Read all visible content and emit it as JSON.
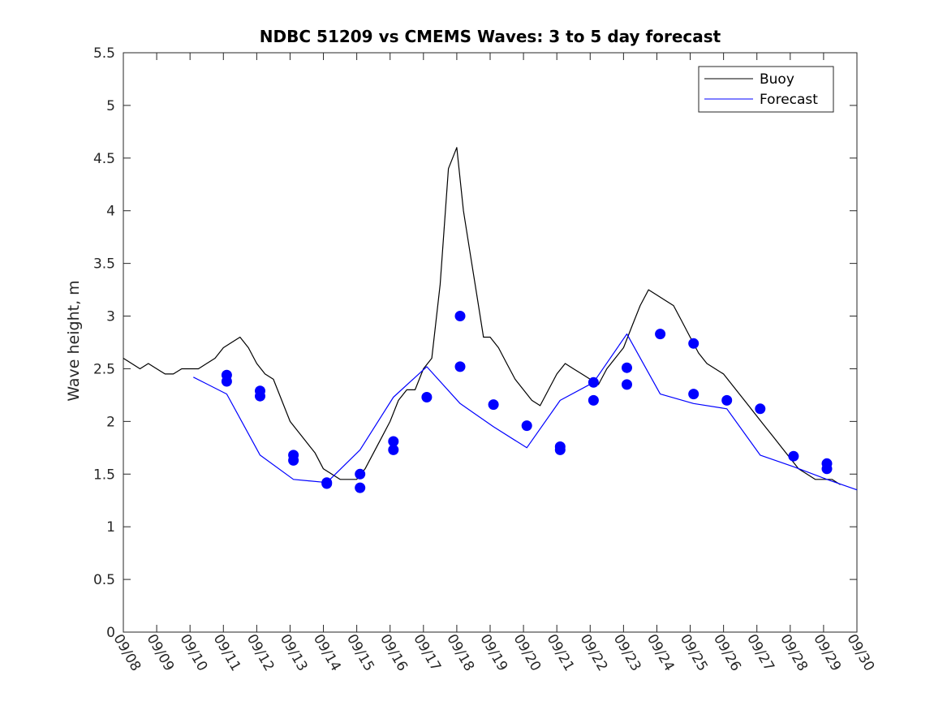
{
  "chart_data": {
    "type": "line",
    "title": "NDBC 51209 vs CMEMS Waves: 3 to 5 day forecast",
    "xlabel": "",
    "ylabel": "Wave height, m",
    "xlim": [
      0,
      22
    ],
    "ylim": [
      0,
      5.5
    ],
    "grid": false,
    "legend_position": "top-right",
    "x_tick_labels": [
      "09/08",
      "09/09",
      "09/10",
      "09/11",
      "09/12",
      "09/13",
      "09/14",
      "09/15",
      "09/16",
      "09/17",
      "09/18",
      "09/19",
      "09/20",
      "09/21",
      "09/22",
      "09/23",
      "09/24",
      "09/25",
      "09/26",
      "09/27",
      "09/28",
      "09/29",
      "09/30"
    ],
    "y_tick_labels": [
      "0",
      "0.5",
      "1",
      "1.5",
      "2",
      "2.5",
      "3",
      "3.5",
      "4",
      "4.5",
      "5",
      "5.5"
    ],
    "legend": [
      {
        "name": "Buoy",
        "color": "#000000"
      },
      {
        "name": "Forecast",
        "color": "#0000ff"
      }
    ],
    "series": [
      {
        "name": "Buoy",
        "color": "#000000",
        "x": [
          0.0,
          0.25,
          0.5,
          0.75,
          1.0,
          1.25,
          1.5,
          1.75,
          2.0,
          2.25,
          2.5,
          2.75,
          3.0,
          3.25,
          3.5,
          3.75,
          4.0,
          4.25,
          4.5,
          4.75,
          5.0,
          5.25,
          5.5,
          5.75,
          6.0,
          6.25,
          6.5,
          6.75,
          7.0,
          7.25,
          7.5,
          7.75,
          8.0,
          8.25,
          8.5,
          8.75,
          9.0,
          9.25,
          9.5,
          9.75,
          10.0,
          10.2,
          10.4,
          10.6,
          10.8,
          11.0,
          11.25,
          11.5,
          11.75,
          12.0,
          12.25,
          12.5,
          12.75,
          13.0,
          13.25,
          13.5,
          13.75,
          14.0,
          14.25,
          14.5,
          14.75,
          15.0,
          15.25,
          15.5,
          15.75,
          16.0,
          16.25,
          16.5,
          16.75,
          17.0,
          17.25,
          17.5,
          17.75,
          18.0,
          18.25,
          18.5,
          18.75,
          19.0,
          19.25,
          19.5,
          19.75,
          20.0,
          20.25,
          20.5,
          20.75,
          21.0,
          21.25,
          21.5
        ],
        "values": [
          2.6,
          2.55,
          2.5,
          2.55,
          2.5,
          2.45,
          2.45,
          2.5,
          2.5,
          2.5,
          2.55,
          2.6,
          2.7,
          2.75,
          2.8,
          2.7,
          2.55,
          2.45,
          2.4,
          2.2,
          2.0,
          1.9,
          1.8,
          1.7,
          1.55,
          1.5,
          1.45,
          1.45,
          1.45,
          1.55,
          1.7,
          1.85,
          2.0,
          2.2,
          2.3,
          2.3,
          2.5,
          2.6,
          3.3,
          4.4,
          4.6,
          4.0,
          3.6,
          3.2,
          2.8,
          2.8,
          2.7,
          2.55,
          2.4,
          2.3,
          2.2,
          2.15,
          2.3,
          2.45,
          2.55,
          2.5,
          2.45,
          2.4,
          2.35,
          2.5,
          2.6,
          2.7,
          2.9,
          3.1,
          3.25,
          3.2,
          3.15,
          3.1,
          2.95,
          2.8,
          2.65,
          2.55,
          2.5,
          2.45,
          2.35,
          2.25,
          2.15,
          2.05,
          1.95,
          1.85,
          1.75,
          1.65,
          1.55,
          1.5,
          1.45,
          1.45,
          1.45,
          1.4
        ]
      },
      {
        "name": "Forecast",
        "color": "#0000ff",
        "x": [
          2.1,
          3.1,
          4.1,
          5.1,
          6.1,
          7.1,
          8.1,
          9.1,
          10.1,
          11.1,
          12.1,
          13.1,
          14.1,
          15.1,
          16.1,
          17.1,
          18.1,
          19.1,
          20.1,
          21.1,
          22.0
        ],
        "values": [
          2.42,
          2.26,
          1.68,
          1.45,
          1.42,
          1.73,
          2.23,
          2.52,
          2.17,
          1.95,
          1.75,
          2.2,
          2.37,
          2.83,
          2.26,
          2.17,
          2.12,
          1.68,
          1.57,
          1.45,
          1.35
        ]
      }
    ],
    "forecast_markers": {
      "x": [
        3.1,
        3.1,
        4.1,
        4.1,
        5.1,
        5.1,
        6.1,
        6.1,
        7.1,
        7.1,
        8.1,
        8.1,
        9.1,
        10.1,
        10.1,
        11.1,
        12.1,
        13.1,
        13.1,
        14.1,
        14.1,
        15.1,
        15.1,
        16.1,
        17.1,
        17.1,
        18.1,
        19.1,
        20.1,
        21.1,
        21.1
      ],
      "values": [
        2.44,
        2.38,
        2.29,
        2.24,
        1.68,
        1.63,
        1.42,
        1.41,
        1.5,
        1.37,
        1.81,
        1.73,
        2.23,
        3.0,
        2.52,
        2.16,
        1.96,
        1.76,
        1.73,
        2.37,
        2.2,
        2.51,
        2.35,
        2.83,
        2.74,
        2.26,
        2.2,
        2.12,
        1.67,
        1.6,
        1.55
      ]
    }
  }
}
